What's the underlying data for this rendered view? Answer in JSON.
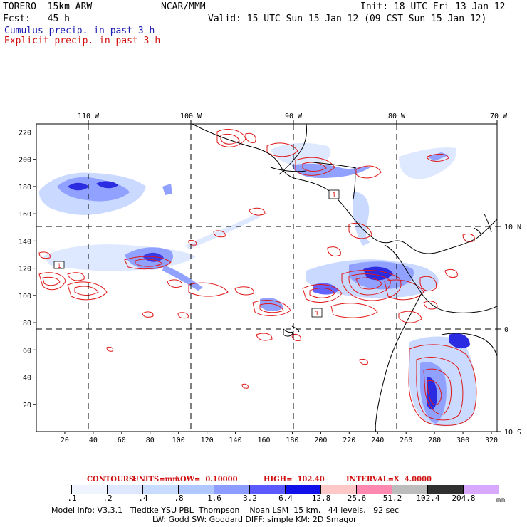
{
  "header": {
    "model": "TORERO  15km ARW",
    "center": "NCAR/MMM",
    "init": "Init: 18 UTC Fri 13 Jan 12",
    "fcst": "Fcst:   45 h",
    "valid": "Valid: 15 UTC Sun 15 Jan 12 (09 CST Sun 15 Jan 12)",
    "field1": "Cumulus precip. in past 3 h",
    "field2": "Explicit precip. in past 3 h"
  },
  "colors": {
    "field1": "#1a1ab0",
    "field2": "#d01010",
    "explicit_contour": "#e01818",
    "coastline": "#000000"
  },
  "lon_labels": [
    "110 W",
    "100 W",
    "90 W",
    "80 W",
    "70 W"
  ],
  "lat_labels": [
    "10 N",
    "0",
    "10 S"
  ],
  "x_ticks": [
    "20",
    "40",
    "60",
    "80",
    "100",
    "120",
    "140",
    "160",
    "180",
    "200",
    "220",
    "240",
    "260",
    "280",
    "300",
    "320"
  ],
  "y_ticks": [
    "20",
    "40",
    "60",
    "80",
    "100",
    "120",
    "140",
    "160",
    "180",
    "200",
    "220"
  ],
  "contour_line": {
    "contours": "CONTOURS:",
    "units": "UNITS=mm",
    "low": "LOW=  0.10000",
    "high": "HIGH=  102.40",
    "interval": "INTERVAL=X  4.0000"
  },
  "colorbar": {
    "labels": [
      ".1",
      ".2",
      ".4",
      ".8",
      "1.6",
      "3.2",
      "6.4",
      "12.8",
      "25.6",
      "51.2",
      "102.4",
      "204.8"
    ],
    "units": "mm",
    "colors": [
      "#ffffff",
      "#f0f4ff",
      "#dde8ff",
      "#c8dcff",
      "#b0c8ff",
      "#8c9cff",
      "#5a5aff",
      "#1010e8",
      "#ffc8c8",
      "#ff88b0",
      "#bcbcbc",
      "#303030",
      "#d8a8ff"
    ]
  },
  "footer": {
    "line1": "Model Info: V3.3.1   Tiedtke YSU PBL  Thompson    Noah LSM  15 km,   44 levels,   92 sec",
    "line2": "LW: Godd SW: Goddard DIFF: simple KM: 2D Smagor"
  },
  "map_labels": [
    "1",
    "1",
    "1"
  ]
}
